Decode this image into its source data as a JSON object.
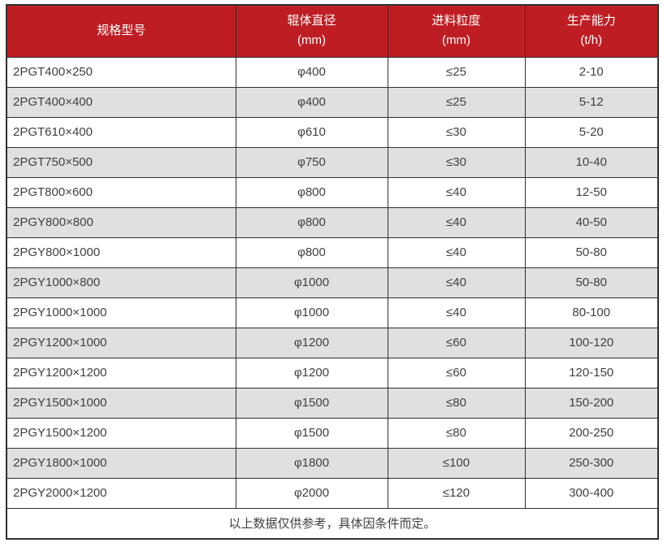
{
  "chart_data": {
    "type": "table",
    "columns": [
      {
        "label": "规格型号",
        "unit": ""
      },
      {
        "label": "辊体直径",
        "unit": "(mm)"
      },
      {
        "label": "进料粒度",
        "unit": "(mm)"
      },
      {
        "label": "生产能力",
        "unit": "(t/h)"
      }
    ],
    "rows": [
      [
        "2PGT400×250",
        "φ400",
        "≤25",
        "2-10"
      ],
      [
        "2PGT400×400",
        "φ400",
        "≤25",
        "5-12"
      ],
      [
        "2PGT610×400",
        "φ610",
        "≤30",
        "5-20"
      ],
      [
        "2PGT750×500",
        "φ750",
        "≤30",
        "10-40"
      ],
      [
        "2PGT800×600",
        "φ800",
        "≤40",
        "12-50"
      ],
      [
        "2PGY800×800",
        "φ800",
        "≤40",
        "40-50"
      ],
      [
        "2PGY800×1000",
        "φ800",
        "≤40",
        "50-80"
      ],
      [
        "2PGY1000×800",
        "φ1000",
        "≤40",
        "50-80"
      ],
      [
        "2PGY1000×1000",
        "φ1000",
        "≤40",
        "80-100"
      ],
      [
        "2PGY1200×1000",
        "φ1200",
        "≤60",
        "100-120"
      ],
      [
        "2PGY1200×1200",
        "φ1200",
        "≤60",
        "120-150"
      ],
      [
        "2PGY1500×1000",
        "φ1500",
        "≤80",
        "150-200"
      ],
      [
        "2PGY1500×1200",
        "φ1500",
        "≤80",
        "200-250"
      ],
      [
        "2PGY1800×1000",
        "φ1800",
        "≤100",
        "250-300"
      ],
      [
        "2PGY2000×1200",
        "φ2000",
        "≤120",
        "300-400"
      ]
    ],
    "footer_note": "以上数据仅供参考，具体因条件而定。"
  },
  "colors": {
    "header_bg": "#BE1E23",
    "header_text": "#FFFFFF",
    "row_bg": "#FFFFFF",
    "row_alt_bg": "#E0E0E0",
    "border": "#303030",
    "text": "#404040"
  }
}
